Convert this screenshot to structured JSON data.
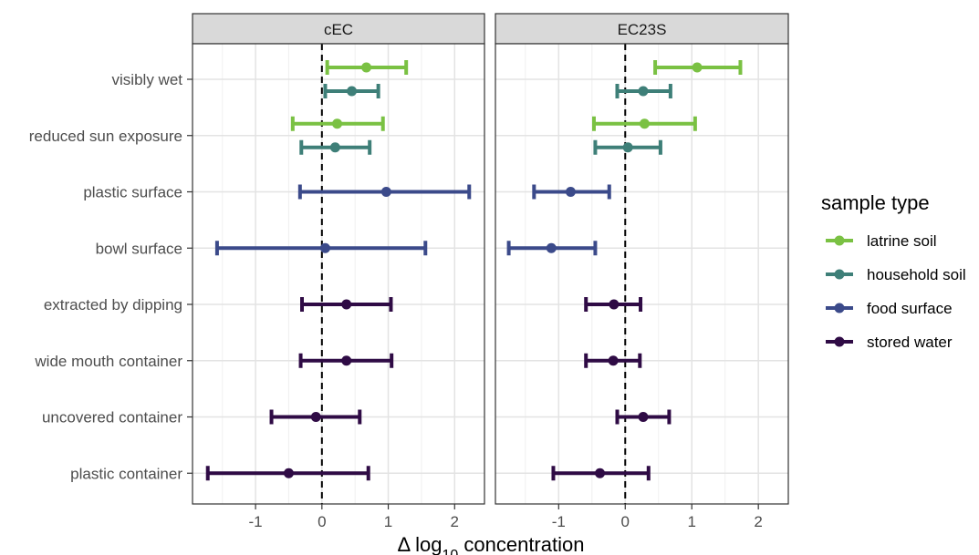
{
  "chart_data": {
    "type": "scatter",
    "xlabel": "Δ log10 concentration",
    "xlabel_parts": {
      "pre": "Δ log",
      "sub": "10",
      "post": " concentration"
    },
    "xlim": [
      -1.95,
      2.45
    ],
    "xticks": [
      -1,
      0,
      1,
      2
    ],
    "reference_line_x": 0,
    "grid": true,
    "legend_position": "right",
    "categories": [
      "visibly wet",
      "reduced sun exposure",
      "plastic surface",
      "bowl surface",
      "extracted by dipping",
      "wide mouth container",
      "uncovered container",
      "plastic container"
    ],
    "series": [
      {
        "name": "latrine soil",
        "color": "#7ac143"
      },
      {
        "name": "household soil",
        "color": "#3e7f78"
      },
      {
        "name": "food surface",
        "color": "#3b4a8a"
      },
      {
        "name": "stored water",
        "color": "#2f0b45"
      }
    ],
    "panels": [
      {
        "title": "cEC",
        "points": [
          {
            "category": "visibly wet",
            "series": "latrine soil",
            "estimate": 0.67,
            "lower": 0.08,
            "upper": 1.27
          },
          {
            "category": "visibly wet",
            "series": "household soil",
            "estimate": 0.45,
            "lower": 0.05,
            "upper": 0.85
          },
          {
            "category": "reduced sun exposure",
            "series": "latrine soil",
            "estimate": 0.23,
            "lower": -0.44,
            "upper": 0.92
          },
          {
            "category": "reduced sun exposure",
            "series": "household soil",
            "estimate": 0.2,
            "lower": -0.31,
            "upper": 0.72
          },
          {
            "category": "plastic surface",
            "series": "food surface",
            "estimate": 0.97,
            "lower": -0.33,
            "upper": 2.22
          },
          {
            "category": "bowl surface",
            "series": "food surface",
            "estimate": 0.05,
            "lower": -1.58,
            "upper": 1.56
          },
          {
            "category": "extracted by dipping",
            "series": "stored water",
            "estimate": 0.37,
            "lower": -0.3,
            "upper": 1.04
          },
          {
            "category": "wide mouth container",
            "series": "stored water",
            "estimate": 0.37,
            "lower": -0.32,
            "upper": 1.05
          },
          {
            "category": "uncovered container",
            "series": "stored water",
            "estimate": -0.09,
            "lower": -0.76,
            "upper": 0.57
          },
          {
            "category": "plastic container",
            "series": "stored water",
            "estimate": -0.5,
            "lower": -1.72,
            "upper": 0.7
          }
        ]
      },
      {
        "title": "EC23S",
        "points": [
          {
            "category": "visibly wet",
            "series": "latrine soil",
            "estimate": 1.08,
            "lower": 0.45,
            "upper": 1.73
          },
          {
            "category": "visibly wet",
            "series": "household soil",
            "estimate": 0.27,
            "lower": -0.12,
            "upper": 0.68
          },
          {
            "category": "reduced sun exposure",
            "series": "latrine soil",
            "estimate": 0.29,
            "lower": -0.47,
            "upper": 1.05
          },
          {
            "category": "reduced sun exposure",
            "series": "household soil",
            "estimate": 0.04,
            "lower": -0.45,
            "upper": 0.53
          },
          {
            "category": "plastic surface",
            "series": "food surface",
            "estimate": -0.82,
            "lower": -1.37,
            "upper": -0.24
          },
          {
            "category": "bowl surface",
            "series": "food surface",
            "estimate": -1.11,
            "lower": -1.75,
            "upper": -0.45
          },
          {
            "category": "extracted by dipping",
            "series": "stored water",
            "estimate": -0.17,
            "lower": -0.59,
            "upper": 0.23
          },
          {
            "category": "wide mouth container",
            "series": "stored water",
            "estimate": -0.18,
            "lower": -0.59,
            "upper": 0.22
          },
          {
            "category": "uncovered container",
            "series": "stored water",
            "estimate": 0.27,
            "lower": -0.12,
            "upper": 0.66
          },
          {
            "category": "plastic container",
            "series": "stored water",
            "estimate": -0.38,
            "lower": -1.08,
            "upper": 0.35
          }
        ]
      }
    ],
    "legend": {
      "title": "sample type"
    }
  }
}
